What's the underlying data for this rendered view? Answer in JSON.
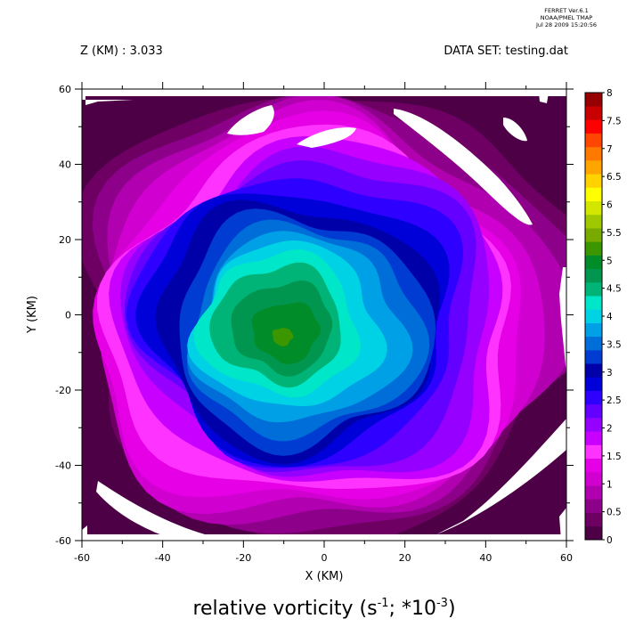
{
  "header": {
    "stamp_line1": "FERRET Ver.6.1",
    "stamp_line2": "NOAA/PMEL TMAP",
    "stamp_line3": "Jul 28 2009 15:20:56",
    "z_label": "Z (KM) : 3.033",
    "dataset_label": "DATA SET: testing.dat"
  },
  "chart_data": {
    "type": "heatmap",
    "title": "relative vorticity (s",
    "title_exp1": "-1",
    "title_mid": "; *10",
    "title_exp2": "-3",
    "title_end": ")",
    "xlabel": "X (KM)",
    "ylabel": "Y (KM)",
    "xlim": [
      -60,
      60
    ],
    "ylim": [
      -60,
      60
    ],
    "x_ticks": [
      -60,
      -40,
      -20,
      0,
      20,
      40,
      60
    ],
    "y_ticks": [
      -60,
      -40,
      -20,
      0,
      20,
      40,
      60
    ],
    "colorbar": {
      "min": 0,
      "max": 8,
      "step": 0.25,
      "labels": [
        "0",
        "0.5",
        "1",
        "1.5",
        "2",
        "2.5",
        "3",
        "3.5",
        "4",
        "4.5",
        "5",
        "5.5",
        "6",
        "6.5",
        "7",
        "7.5",
        "8"
      ],
      "colors": [
        "#4d0046",
        "#6e0064",
        "#8c008a",
        "#b000b0",
        "#d000d0",
        "#e600e6",
        "#ff33ff",
        "#c800ff",
        "#9600ff",
        "#6400ff",
        "#2d00ff",
        "#0000d8",
        "#0000a8",
        "#003cd2",
        "#006ed8",
        "#00a0e6",
        "#00d2e6",
        "#00e6c8",
        "#00b478",
        "#009650",
        "#008c28",
        "#3c9600",
        "#78aa00",
        "#a0c800",
        "#d2e600",
        "#ffff00",
        "#ffd200",
        "#ffa500",
        "#ff7800",
        "#ff4600",
        "#ff0000",
        "#c80000",
        "#960000"
      ]
    },
    "field": {
      "center_x": 0,
      "center_y": 0,
      "peak_value": 5.2,
      "peak_x": -12,
      "peak_y": -5,
      "background_value": 0.15
    }
  }
}
